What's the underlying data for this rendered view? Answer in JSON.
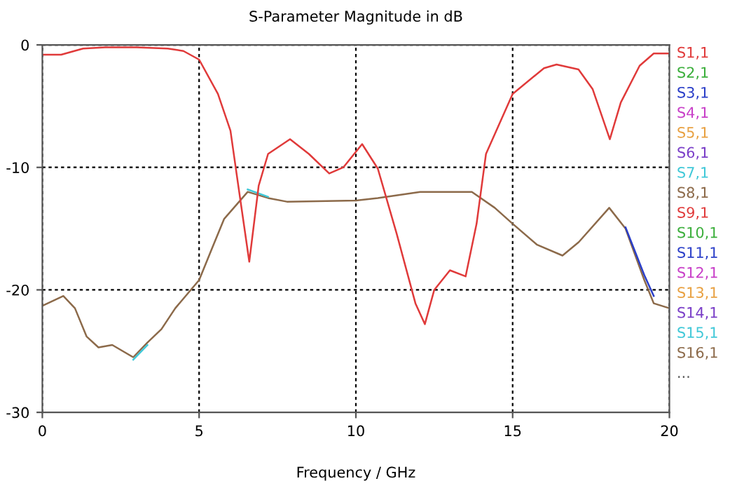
{
  "chart_data": {
    "type": "line",
    "title": "S-Parameter Magnitude in dB",
    "xlabel": "Frequency / GHz",
    "xlim": [
      0,
      20
    ],
    "ylim": [
      -30,
      0
    ],
    "xticks": [
      0,
      5,
      10,
      15,
      20
    ],
    "yticks": [
      0,
      -10,
      -20,
      -30
    ],
    "grid": true,
    "legend": "right",
    "line_style": "solid",
    "annotations": [
      "..."
    ],
    "series": [
      {
        "name": "S1,1",
        "color": "#e03a3a",
        "x": [
          0,
          0.6,
          1.3,
          2,
          3,
          4,
          4.5,
          5,
          5.6,
          6.0,
          6.25,
          6.6,
          6.9,
          7.2,
          7.9,
          8.5,
          9.15,
          9.6,
          10.2,
          10.7,
          11.3,
          11.9,
          12.2,
          12.5,
          13.0,
          13.5,
          13.85,
          14.15,
          15.0,
          16.0,
          16.4,
          17.1,
          17.55,
          18.1,
          18.45,
          19.05,
          19.5,
          20
        ],
        "values": [
          -0.8,
          -0.8,
          -0.3,
          -0.2,
          -0.2,
          -0.3,
          -0.5,
          -1.2,
          -4,
          -7,
          -11.5,
          -17.7,
          -11.5,
          -8.9,
          -7.7,
          -8.9,
          -10.5,
          -10,
          -8.1,
          -10.1,
          -15.4,
          -21.1,
          -22.8,
          -20,
          -18.4,
          -18.9,
          -14.6,
          -8.9,
          -4,
          -1.9,
          -1.6,
          -2.0,
          -3.6,
          -7.7,
          -4.7,
          -1.7,
          -0.7,
          -0.7
        ]
      },
      {
        "name": "S2,1",
        "color": "#3aae3a",
        "values": [
          null,
          null,
          null,
          null,
          null,
          null,
          null,
          null,
          null,
          null,
          null,
          null,
          null,
          null,
          null,
          null,
          null,
          null,
          null,
          null,
          null,
          null,
          null,
          null,
          null,
          null,
          null,
          null,
          null,
          null
        ]
      },
      {
        "name": "S3,1",
        "color": "#2a3ec8",
        "values": [
          null,
          null,
          null,
          null,
          null,
          null,
          null,
          null,
          null,
          null,
          null,
          null,
          null,
          null,
          null,
          null,
          null,
          null,
          null,
          null,
          null,
          null,
          null,
          null,
          null,
          null,
          -14.9,
          -18.8,
          -20.5,
          null
        ]
      },
      {
        "name": "S4,1",
        "color": "#c83ec8",
        "values": [
          null,
          null,
          null,
          null,
          null,
          null,
          null,
          null,
          null,
          null,
          null,
          null,
          null,
          null,
          null,
          null,
          null,
          null,
          null,
          null,
          null,
          null,
          null,
          null,
          null,
          null,
          null,
          null,
          null,
          null
        ]
      },
      {
        "name": "S5,1",
        "color": "#e8a040",
        "values": [
          null,
          null,
          null,
          null,
          null,
          null,
          null,
          null,
          null,
          null,
          null,
          null,
          null,
          null,
          null,
          null,
          null,
          null,
          null,
          null,
          null,
          null,
          null,
          null,
          null,
          null,
          null,
          null,
          null,
          null
        ]
      },
      {
        "name": "S6,1",
        "color": "#7a3ec8",
        "values": [
          null,
          null,
          null,
          null,
          null,
          null,
          null,
          null,
          null,
          null,
          null,
          null,
          null,
          null,
          null,
          null,
          null,
          null,
          null,
          null,
          null,
          null,
          null,
          null,
          null,
          null,
          null,
          null,
          null,
          null
        ]
      },
      {
        "name": "S7,1",
        "color": "#40c8d8",
        "values": [
          null,
          null,
          null,
          null,
          null,
          null,
          -25.7,
          -24.5,
          null,
          null,
          null,
          null,
          null,
          -11.8,
          -12.4,
          null,
          null,
          null,
          null,
          null,
          null,
          null,
          null,
          null,
          null,
          null,
          null,
          null,
          null,
          null
        ]
      },
      {
        "name": "S8,1",
        "color": "#8c6a4a",
        "values": [
          null,
          null,
          null,
          null,
          null,
          null,
          null,
          null,
          null,
          null,
          null,
          null,
          null,
          null,
          null,
          null,
          null,
          null,
          null,
          null,
          null,
          null,
          null,
          null,
          null,
          null,
          null,
          null,
          null,
          null
        ]
      },
      {
        "name": "S9,1",
        "color": "#e03a3a",
        "values": [
          null,
          null,
          null,
          null,
          null,
          null,
          null,
          null,
          null,
          null,
          null,
          null,
          null,
          null,
          null,
          null,
          null,
          null,
          null,
          null,
          null,
          null,
          null,
          null,
          null,
          null,
          null,
          null,
          null,
          null
        ]
      },
      {
        "name": "S10,1",
        "color": "#3aae3a",
        "values": [
          null,
          null,
          null,
          null,
          null,
          null,
          null,
          null,
          null,
          null,
          null,
          null,
          null,
          null,
          null,
          null,
          null,
          null,
          null,
          null,
          null,
          null,
          null,
          null,
          null,
          null,
          null,
          null,
          null,
          null
        ]
      },
      {
        "name": "S11,1",
        "color": "#2a3ec8",
        "values": [
          null,
          null,
          null,
          null,
          null,
          null,
          null,
          null,
          null,
          null,
          null,
          null,
          null,
          null,
          null,
          null,
          null,
          null,
          null,
          null,
          null,
          null,
          null,
          null,
          null,
          null,
          null,
          null,
          null,
          null
        ]
      },
      {
        "name": "S12,1",
        "color": "#c83ec8",
        "values": [
          null,
          null,
          null,
          null,
          null,
          null,
          null,
          null,
          null,
          null,
          null,
          null,
          null,
          null,
          null,
          null,
          null,
          null,
          null,
          null,
          null,
          null,
          null,
          null,
          null,
          null,
          null,
          null,
          null,
          null
        ]
      },
      {
        "name": "S13,1",
        "color": "#e8a040",
        "values": [
          null,
          null,
          null,
          null,
          null,
          null,
          null,
          null,
          null,
          null,
          null,
          null,
          null,
          null,
          null,
          null,
          null,
          null,
          null,
          null,
          null,
          null,
          null,
          null,
          null,
          null,
          null,
          null,
          null,
          null
        ]
      },
      {
        "name": "S14,1",
        "color": "#7a3ec8",
        "values": [
          null,
          null,
          null,
          null,
          null,
          null,
          null,
          null,
          null,
          null,
          null,
          null,
          null,
          null,
          null,
          null,
          null,
          null,
          null,
          null,
          null,
          null,
          null,
          null,
          null,
          null,
          null,
          null,
          null,
          null
        ]
      },
      {
        "name": "S15,1",
        "color": "#40c8d8",
        "values": [
          null,
          null,
          null,
          null,
          null,
          null,
          null,
          null,
          null,
          null,
          null,
          null,
          null,
          null,
          null,
          null,
          null,
          null,
          null,
          null,
          null,
          null,
          null,
          null,
          null,
          null,
          null,
          null,
          null,
          null
        ]
      },
      {
        "name": "S16,1",
        "color": "#8c6a4a",
        "values": [
          -21.3,
          -20.5,
          -21.5,
          -23.8,
          -24.7,
          -24.5,
          -25.5,
          -24.3,
          -23.2,
          -21.5,
          -19.2,
          -16.5,
          -14.2,
          -12.0,
          -12.5,
          -12.8,
          -12.7,
          -12.5,
          -12.0,
          -12.0,
          -13.3,
          -14.6,
          -16.3,
          -17.2,
          -16.1,
          -13.3,
          -15.0,
          -19.2,
          -21.1,
          -21.5
        ]
      }
    ],
    "x": [
      0,
      0.67,
      1.04,
      1.41,
      1.79,
      2.23,
      2.9,
      3.35,
      3.8,
      4.24,
      5.0,
      5.43,
      5.8,
      6.55,
      7.2,
      7.8,
      10.0,
      10.7,
      12.05,
      13.7,
      14.43,
      15.0,
      15.77,
      16.59,
      17.11,
      18.08,
      18.6,
      19.2,
      19.5,
      20
    ]
  }
}
